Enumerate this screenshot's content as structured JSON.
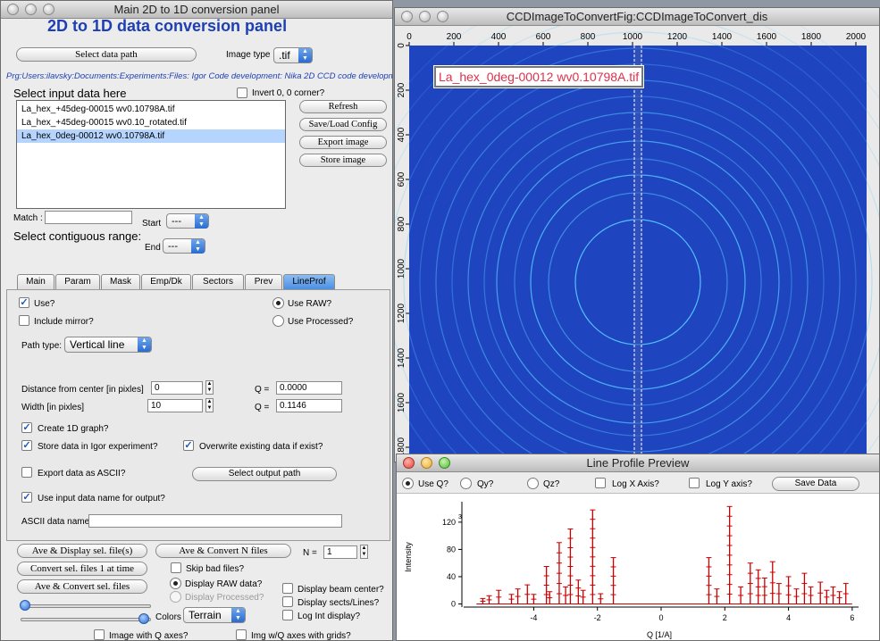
{
  "main_panel": {
    "window_title": "Main 2D to 1D conversion panel",
    "heading": "2D to 1D data conversion panel",
    "select_data_path_btn": "Select data path",
    "image_type_label": "Image type",
    "image_type_value": ".tif",
    "path_text": "Prg:Users:ilavsky:Documents:Experiments:Files: Igor Code development: Nika 2D CCD code developm",
    "select_input_label": "Select input data here",
    "invert_label": "Invert 0, 0 corner?",
    "files": [
      "La_hex_+45deg-00015 wv0.10798A.tif",
      "La_hex_+45deg-00015 wv0.10_rotated.tif",
      "La_hex_0deg-00012 wv0.10798A.tif"
    ],
    "selected_file_index": 2,
    "buttons": {
      "refresh": "Refresh",
      "save_load": "Save/Load Config",
      "export_image": "Export image",
      "store_image": "Store image"
    },
    "match_label": "Match :",
    "match_value": "",
    "start_label": "Start",
    "start_value": "---",
    "contiguous_label": "Select contiguous range:",
    "end_label": "End",
    "end_value": "---",
    "tabs": [
      "Main",
      "Param",
      "Mask",
      "Emp/Dk",
      "Sectors",
      "Prev",
      "LineProf"
    ],
    "active_tab": "LineProf",
    "lineprof": {
      "use_label": "Use?",
      "include_mirror_label": "Include mirror?",
      "use_raw_label": "Use RAW?",
      "use_processed_label": "Use Processed?",
      "path_type_label": "Path type:",
      "path_type_value": "Vertical line",
      "distance_label": "Distance from center [in pixles]",
      "distance_value": "0",
      "q_label_1": "Q =",
      "q_value_1": "0.0000",
      "width_label": "Width [in pixles]",
      "width_value": "10",
      "q_label_2": "Q =",
      "q_value_2": "0.1146",
      "create_1d_label": "Create 1D graph?",
      "store_igor_label": "Store data in Igor experiment?",
      "overwrite_label": "Overwrite existing data if exist?",
      "export_ascii_label": "Export data as ASCII?",
      "select_output_btn": "Select output path",
      "use_input_name_label": "Use input data name for output?",
      "ascii_name_label": "ASCII data name",
      "ascii_name_value": ""
    },
    "bottom": {
      "ave_display_btn": "Ave & Display sel. file(s)",
      "ave_convert_n_btn": "Ave & Convert N files",
      "n_label": "N =",
      "n_value": "1",
      "convert_one_btn": "Convert sel. files 1 at time",
      "skip_bad_label": "Skip bad files?",
      "ave_convert_sel_btn": "Ave & Convert sel. files",
      "display_raw_label": "Display RAW data?",
      "display_processed_label": "Display Processed?",
      "display_beam_label": "Display beam center?",
      "display_sects_label": "Display sects/Lines?",
      "log_int_label": "Log Int display?",
      "colors_label": "Colors",
      "colors_value": "Terrain",
      "image_q_axes_label": "Image with Q axes?",
      "img_grids_label": "Img w/Q axes with grids?"
    }
  },
  "ccd_window": {
    "title": "CCDImageToConvertFig:CCDImageToConvert_dis",
    "image_label": "La_hex_0deg-00012 wv0.10798A.tif",
    "x_ticks": [
      "0",
      "200",
      "400",
      "600",
      "800",
      "1000",
      "1200",
      "1400",
      "1600",
      "1800",
      "2000"
    ],
    "y_ticks": [
      "0",
      "200",
      "400",
      "600",
      "800",
      "1000",
      "1200",
      "1400",
      "1600",
      "1800"
    ],
    "background_color": "#1f44c0",
    "ring_color": "#55c8ff"
  },
  "line_profile": {
    "title": "Line Profile Preview",
    "use_q_label": "Use Q?",
    "qy_label": "Qy?",
    "qz_label": "Qz?",
    "log_x_label": "Log X Axis?",
    "log_y_label": "Log Y axis?",
    "save_btn": "Save Data",
    "ylabel": "Intensity",
    "xlabel": "Q [1/A]",
    "y_exponent": "3",
    "series_color": "#cc0000"
  },
  "chart_data": {
    "type": "line",
    "xlabel": "Q [1/A]",
    "ylabel": "Intensity",
    "x_ticks": [
      -4,
      -2,
      0,
      2,
      4,
      6
    ],
    "y_ticks": [
      0,
      40,
      80,
      120
    ],
    "xlim": [
      -6.2,
      6.2
    ],
    "ylim": [
      -2,
      150
    ],
    "peaks": [
      {
        "x": -5.6,
        "y": 8
      },
      {
        "x": -5.4,
        "y": 12
      },
      {
        "x": -5.1,
        "y": 20
      },
      {
        "x": -4.7,
        "y": 14
      },
      {
        "x": -4.5,
        "y": 22
      },
      {
        "x": -4.2,
        "y": 28
      },
      {
        "x": -4.0,
        "y": 14
      },
      {
        "x": -3.6,
        "y": 55
      },
      {
        "x": -3.5,
        "y": 18
      },
      {
        "x": -3.2,
        "y": 90
      },
      {
        "x": -3.0,
        "y": 25
      },
      {
        "x": -2.85,
        "y": 110
      },
      {
        "x": -2.6,
        "y": 35
      },
      {
        "x": -2.45,
        "y": 20
      },
      {
        "x": -2.15,
        "y": 138
      },
      {
        "x": -1.9,
        "y": 15
      },
      {
        "x": -1.5,
        "y": 68
      },
      {
        "x": 1.5,
        "y": 68
      },
      {
        "x": 1.75,
        "y": 22
      },
      {
        "x": 2.15,
        "y": 143
      },
      {
        "x": 2.5,
        "y": 25
      },
      {
        "x": 2.8,
        "y": 60
      },
      {
        "x": 3.05,
        "y": 50
      },
      {
        "x": 3.25,
        "y": 38
      },
      {
        "x": 3.5,
        "y": 62
      },
      {
        "x": 3.7,
        "y": 30
      },
      {
        "x": 4.0,
        "y": 40
      },
      {
        "x": 4.25,
        "y": 22
      },
      {
        "x": 4.5,
        "y": 45
      },
      {
        "x": 4.7,
        "y": 25
      },
      {
        "x": 5.0,
        "y": 32
      },
      {
        "x": 5.2,
        "y": 20
      },
      {
        "x": 5.4,
        "y": 25
      },
      {
        "x": 5.6,
        "y": 18
      },
      {
        "x": 5.8,
        "y": 30
      }
    ]
  }
}
